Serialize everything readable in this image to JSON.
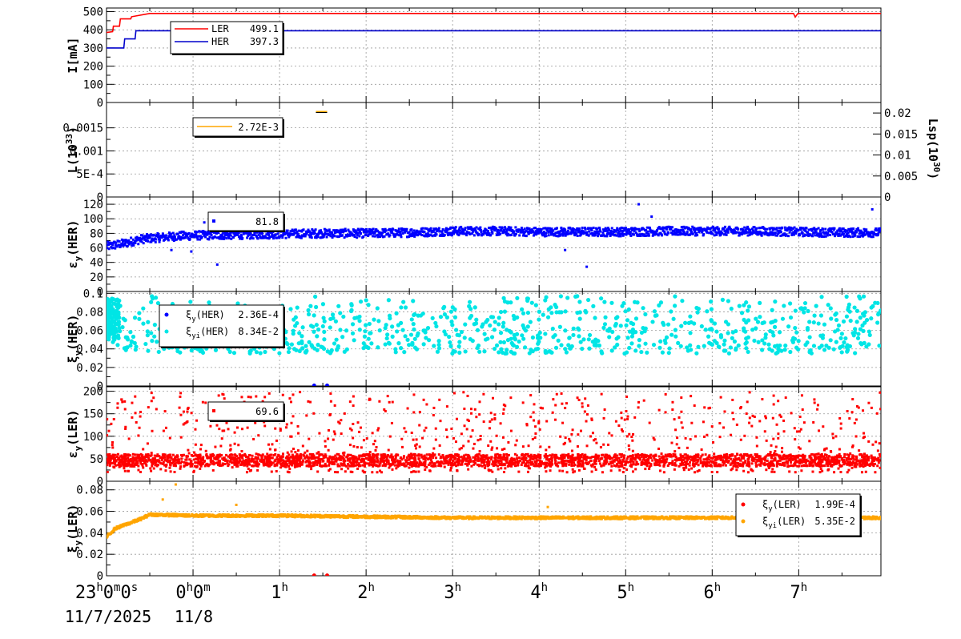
{
  "chart_data": [
    {
      "id": "current",
      "type": "line",
      "ylabel": "I[mA]",
      "ylim": [
        0,
        520
      ],
      "yticks": [
        0,
        100,
        200,
        300,
        400,
        500
      ],
      "ytick_labels": [
        "0",
        "100",
        "200",
        "300",
        "400",
        "500"
      ],
      "grid": true,
      "legend_position": "top-left",
      "series": [
        {
          "name": "LER",
          "legend_value": "499.1",
          "color": "#ff0000",
          "x": [
            -1.0,
            -0.93,
            -0.92,
            -0.85,
            -0.84,
            -0.72,
            -0.71,
            -0.5,
            0,
            2,
            4,
            6,
            6.94,
            6.96,
            6.99,
            7.2,
            7.95
          ],
          "y": [
            385,
            390,
            420,
            420,
            460,
            460,
            472,
            490,
            490,
            490,
            490,
            490,
            490,
            470,
            490,
            490,
            490
          ]
        },
        {
          "name": "HER",
          "legend_value": "397.3",
          "color": "#0000cc",
          "x": [
            -1.0,
            -0.8,
            -0.79,
            -0.67,
            -0.66,
            -0.6,
            -0.5,
            0,
            2,
            4,
            6,
            7.95
          ],
          "y": [
            300,
            300,
            350,
            350,
            395,
            395,
            395,
            395,
            395,
            395,
            395,
            395
          ]
        }
      ]
    },
    {
      "id": "luminosity",
      "type": "line",
      "ylabel": "L(10",
      "ylabel_sup": "33",
      "ylabel_end": ")",
      "ylim": [
        0,
        0.00205
      ],
      "yticks": [
        0,
        0.0005,
        0.001,
        0.0015
      ],
      "ytick_labels": [
        "0",
        "5E-4",
        "0.001",
        "0.0015"
      ],
      "y2label": "Lsp(10",
      "y2label_sup": "30",
      "y2label_end": ")",
      "y2lim": [
        0,
        0.0225
      ],
      "y2ticks": [
        0,
        0.005,
        0.01,
        0.015,
        0.02
      ],
      "y2tick_labels": [
        "0",
        "0.005",
        "0.01",
        "0.015",
        "0.02"
      ],
      "grid": true,
      "legend_position": "top-left",
      "series": [
        {
          "name": "",
          "legend_value": "2.72E-3",
          "color": "#ffa500",
          "x": [
            1.42,
            1.55
          ],
          "y": [
            0.00185,
            0.00185
          ]
        }
      ]
    },
    {
      "id": "emit-her",
      "type": "scatter",
      "ylabel": "ε",
      "ylabel_sub": "y",
      "ylabel_end": "(HER)",
      "ylim": [
        0,
        130
      ],
      "yticks": [
        0,
        20,
        40,
        60,
        80,
        100,
        120
      ],
      "ytick_labels": [
        "0",
        "20",
        "40",
        "60",
        "80",
        "100",
        "120"
      ],
      "grid": true,
      "legend_position": "top-left",
      "series": [
        {
          "name": "",
          "legend_value": "81.8",
          "color": "#0000ff",
          "x": [
            -1.0,
            -0.8,
            -0.6,
            -0.4,
            -0.2,
            0,
            0.5,
            1,
            1.5,
            2,
            2.5,
            3,
            3.5,
            4,
            4.5,
            5,
            5.5,
            6,
            6.5,
            7,
            7.5,
            7.95
          ],
          "y": [
            62,
            66,
            72,
            74,
            76,
            77,
            78,
            79,
            80,
            80,
            81,
            83,
            83,
            82,
            82,
            82,
            83,
            83,
            83,
            82,
            81,
            81
          ],
          "outliers": [
            [
              -0.25,
              57
            ],
            [
              -0.02,
              55
            ],
            [
              0.28,
              37
            ],
            [
              0.13,
              95
            ],
            [
              4.3,
              57
            ],
            [
              4.55,
              34
            ],
            [
              5.15,
              120
            ],
            [
              5.3,
              103
            ],
            [
              7.85,
              113
            ]
          ]
        }
      ]
    },
    {
      "id": "tune-her",
      "type": "scatter",
      "ylabel": "ξ",
      "ylabel_sub": "y",
      "ylabel_end": "(HER)",
      "ylim": [
        0,
        0.102
      ],
      "yticks": [
        0,
        0.02,
        0.04,
        0.06,
        0.08,
        0.1
      ],
      "ytick_labels": [
        "0",
        "0.02",
        "0.04",
        "0.06",
        "0.08",
        "0.1"
      ],
      "grid": true,
      "legend_position": "top-left",
      "series": [
        {
          "name": "ξ",
          "name_sub": "y",
          "name_end": "(HER)",
          "legend_value": "2.36E-4",
          "color": "#0000ff",
          "x": [
            1.4,
            1.55
          ],
          "y": [
            0.0004,
            0.0004
          ]
        },
        {
          "name": "ξ",
          "name_sub": "yi",
          "name_end": "(HER)",
          "legend_value": "8.34E-2",
          "color": "#00e5e5",
          "y_range": [
            0.035,
            0.098
          ]
        }
      ]
    },
    {
      "id": "emit-ler",
      "type": "scatter",
      "ylabel": "ε",
      "ylabel_sub": "y",
      "ylabel_end": "(LER)",
      "ylim": [
        0,
        210
      ],
      "yticks": [
        0,
        50,
        100,
        150,
        200
      ],
      "ytick_labels": [
        "0",
        "50",
        "100",
        "150",
        "200"
      ],
      "grid": true,
      "legend_position": "top-left",
      "series": [
        {
          "name": "",
          "legend_value": "69.6",
          "color": "#ff0000",
          "y_band": [
            33,
            60
          ],
          "y_spread": [
            20,
            200
          ]
        }
      ]
    },
    {
      "id": "tune-ler",
      "type": "scatter",
      "ylabel": "ξ",
      "ylabel_sub": "y",
      "ylabel_end": "(LER)",
      "ylim": [
        0,
        0.088
      ],
      "yticks": [
        0,
        0.02,
        0.04,
        0.06,
        0.08
      ],
      "ytick_labels": [
        "0",
        "0.02",
        "0.04",
        "0.06",
        "0.08"
      ],
      "grid": true,
      "legend_position": "top-right",
      "series": [
        {
          "name": "ξ",
          "name_sub": "y",
          "name_end": "(LER)",
          "legend_value": "1.99E-4",
          "color": "#ff0000",
          "x": [
            1.4,
            1.55
          ],
          "y": [
            0.0003,
            0.0003
          ]
        },
        {
          "name": "ξ",
          "name_sub": "yi",
          "name_end": "(LER)",
          "legend_value": "5.35E-2",
          "color": "#ffa500",
          "x": [
            -1.0,
            -0.9,
            -0.8,
            -0.7,
            -0.6,
            -0.5,
            0,
            1,
            2,
            3,
            4,
            5,
            6,
            7,
            7.95
          ],
          "y": [
            0.036,
            0.044,
            0.047,
            0.05,
            0.053,
            0.057,
            0.056,
            0.056,
            0.055,
            0.054,
            0.054,
            0.054,
            0.054,
            0.054,
            0.054
          ],
          "outliers": [
            [
              -0.35,
              0.071
            ],
            [
              -0.2,
              0.085
            ],
            [
              0.5,
              0.066
            ],
            [
              4.1,
              0.064
            ]
          ]
        }
      ]
    }
  ],
  "x_axis": {
    "range_hours": [
      -1.0,
      7.95
    ],
    "major_ticks": [
      -1,
      0,
      1,
      2,
      3,
      4,
      5,
      6,
      7
    ],
    "minor_step": 0.5,
    "labels": [
      {
        "h": -1,
        "main": "23",
        "sup": "h",
        "rest": "0",
        "sup2": "m",
        "rest2": "0",
        "sup3": "s"
      },
      {
        "h": 0,
        "main": "0",
        "sup": "h",
        "rest": "0",
        "sup2": "m"
      },
      {
        "h": 1,
        "main": "1",
        "sup": "h"
      },
      {
        "h": 2,
        "main": "2",
        "sup": "h"
      },
      {
        "h": 3,
        "main": "3",
        "sup": "h"
      },
      {
        "h": 4,
        "main": "4",
        "sup": "h"
      },
      {
        "h": 5,
        "main": "5",
        "sup": "h"
      },
      {
        "h": 6,
        "main": "6",
        "sup": "h"
      },
      {
        "h": 7,
        "main": "7",
        "sup": "h"
      }
    ],
    "date_left": "11/7/2025",
    "date_right": "11/8"
  }
}
